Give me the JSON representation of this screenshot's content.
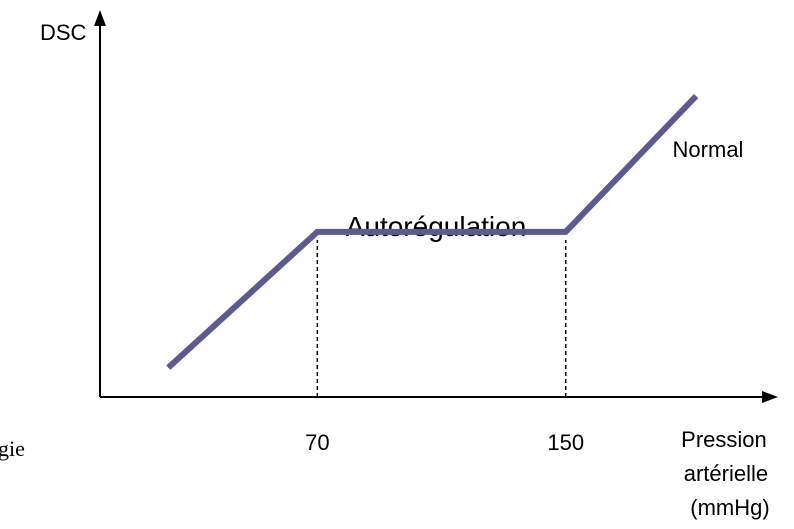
{
  "chart_data": {
    "type": "line",
    "y_axis_label": "DSC",
    "x_axis_label_lines": [
      "Pression",
      "artérielle",
      "(mmHg)"
    ],
    "x_ticks": [
      70,
      150
    ],
    "region_label": "Autorégulation",
    "series": [
      {
        "name": "Normal",
        "color": "#5b5b8f",
        "points": [
          {
            "x": 22,
            "y": 0.08
          },
          {
            "x": 70,
            "y": 0.45
          },
          {
            "x": 150,
            "y": 0.45
          },
          {
            "x": 192,
            "y": 0.82
          }
        ]
      }
    ],
    "reference_lines_x": [
      70,
      150
    ],
    "xlim": [
      0,
      210
    ],
    "ylim": [
      0,
      1
    ],
    "grid": false
  },
  "fragment_text": "gie"
}
